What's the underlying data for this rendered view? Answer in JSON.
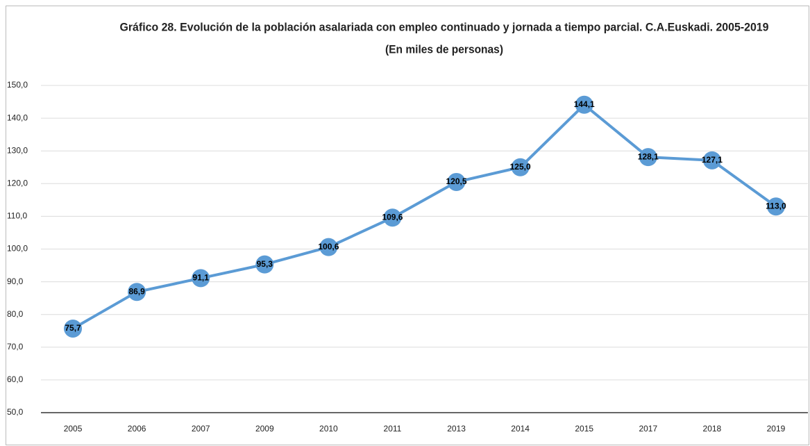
{
  "chart_data": {
    "type": "line",
    "title": "Gráfico 28. Evolución de la población asalariada con empleo continuado y jornada a tiempo parcial. C.A.Euskadi. 2005-2019",
    "subtitle": "(En miles de personas)",
    "categories": [
      "2005",
      "2006",
      "2007",
      "2009",
      "2010",
      "2011",
      "2013",
      "2014",
      "2015",
      "2017",
      "2018",
      "2019"
    ],
    "series": [
      {
        "name": "Población asalariada",
        "color": "#5b9bd5",
        "values": [
          75.7,
          86.9,
          91.1,
          95.3,
          100.6,
          109.6,
          120.5,
          125.0,
          144.1,
          128.1,
          127.1,
          113.0
        ],
        "value_labels": [
          "75,7",
          "86,9",
          "91,1",
          "95,3",
          "100,6",
          "109,6",
          "120,5",
          "125,0",
          "144,1",
          "128,1",
          "127,1",
          "113,0"
        ]
      }
    ],
    "ylim": [
      50,
      150
    ],
    "yticks": [
      {
        "value": 50,
        "label": "50,0"
      },
      {
        "value": 60,
        "label": "60,0"
      },
      {
        "value": 70,
        "label": "70,0"
      },
      {
        "value": 80,
        "label": "80,0"
      },
      {
        "value": 90,
        "label": "90,0"
      },
      {
        "value": 100,
        "label": "100,0"
      },
      {
        "value": 110,
        "label": "110,0"
      },
      {
        "value": 120,
        "label": "120,0"
      },
      {
        "value": 130,
        "label": "130,0"
      },
      {
        "value": 140,
        "label": "140,0"
      },
      {
        "value": 150,
        "label": "150,0"
      }
    ],
    "grid": true
  }
}
